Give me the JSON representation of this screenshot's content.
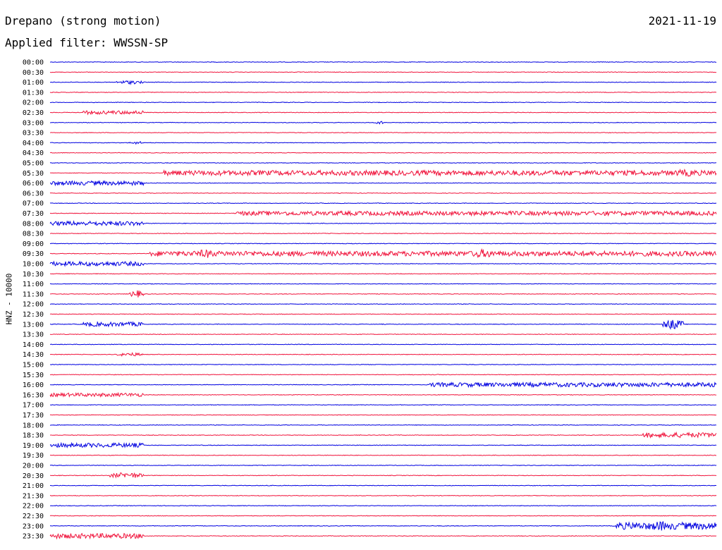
{
  "header": {
    "station_title": "Drepano (strong motion)",
    "date": "2021-11-19",
    "filter_text": "Applied filter: WWSSN-SP"
  },
  "chart_data": {
    "type": "line",
    "title": "Drepano (strong motion)",
    "ylabel": "HNZ - 10000",
    "colors": [
      "#0000e0",
      "#f0143c"
    ],
    "rows": [
      {
        "label": "00:00",
        "bursts": []
      },
      {
        "label": "00:30",
        "bursts": []
      },
      {
        "label": "01:00",
        "bursts": [
          [
            0.1,
            0.14,
            2.5
          ]
        ]
      },
      {
        "label": "01:30",
        "bursts": []
      },
      {
        "label": "02:00",
        "bursts": []
      },
      {
        "label": "02:30",
        "bursts": [
          [
            0.05,
            0.14,
            2.5
          ]
        ]
      },
      {
        "label": "03:00",
        "bursts": [
          [
            0.49,
            0.5,
            2.5
          ]
        ]
      },
      {
        "label": "03:30",
        "bursts": []
      },
      {
        "label": "04:00",
        "bursts": [
          [
            0.12,
            0.14,
            2
          ]
        ]
      },
      {
        "label": "04:30",
        "bursts": []
      },
      {
        "label": "05:00",
        "bursts": []
      },
      {
        "label": "05:30",
        "bursts": [
          [
            0.17,
            1.0,
            3.5
          ],
          [
            0.93,
            0.98,
            5
          ]
        ]
      },
      {
        "label": "06:00",
        "bursts": [
          [
            0.0,
            0.14,
            3
          ]
        ]
      },
      {
        "label": "06:30",
        "bursts": []
      },
      {
        "label": "07:00",
        "bursts": []
      },
      {
        "label": "07:30",
        "bursts": [
          [
            0.28,
            1.0,
            3
          ]
        ]
      },
      {
        "label": "08:00",
        "bursts": [
          [
            0.0,
            0.14,
            3
          ]
        ]
      },
      {
        "label": "08:30",
        "bursts": []
      },
      {
        "label": "09:00",
        "bursts": []
      },
      {
        "label": "09:30",
        "bursts": [
          [
            0.15,
            1.0,
            3.5
          ],
          [
            0.22,
            0.25,
            6
          ],
          [
            0.63,
            0.67,
            6
          ]
        ]
      },
      {
        "label": "10:00",
        "bursts": [
          [
            0.0,
            0.14,
            3
          ]
        ]
      },
      {
        "label": "10:30",
        "bursts": []
      },
      {
        "label": "11:00",
        "bursts": []
      },
      {
        "label": "11:30",
        "bursts": [
          [
            0.12,
            0.14,
            5
          ]
        ]
      },
      {
        "label": "12:00",
        "bursts": []
      },
      {
        "label": "12:30",
        "bursts": []
      },
      {
        "label": "13:00",
        "bursts": [
          [
            0.05,
            0.14,
            3
          ],
          [
            0.92,
            0.95,
            7
          ]
        ]
      },
      {
        "label": "13:30",
        "bursts": []
      },
      {
        "label": "14:00",
        "bursts": []
      },
      {
        "label": "14:30",
        "bursts": [
          [
            0.1,
            0.14,
            2.5
          ]
        ]
      },
      {
        "label": "15:00",
        "bursts": []
      },
      {
        "label": "15:30",
        "bursts": []
      },
      {
        "label": "16:00",
        "bursts": [
          [
            0.57,
            1.0,
            3
          ]
        ]
      },
      {
        "label": "16:30",
        "bursts": [
          [
            0.0,
            0.14,
            2.5
          ]
        ]
      },
      {
        "label": "17:00",
        "bursts": []
      },
      {
        "label": "17:30",
        "bursts": []
      },
      {
        "label": "18:00",
        "bursts": []
      },
      {
        "label": "18:30",
        "bursts": [
          [
            0.89,
            1.0,
            3.5
          ]
        ]
      },
      {
        "label": "19:00",
        "bursts": [
          [
            0.0,
            0.14,
            3
          ]
        ]
      },
      {
        "label": "19:30",
        "bursts": []
      },
      {
        "label": "20:00",
        "bursts": []
      },
      {
        "label": "20:30",
        "bursts": [
          [
            0.09,
            0.14,
            4
          ]
        ]
      },
      {
        "label": "21:00",
        "bursts": []
      },
      {
        "label": "21:30",
        "bursts": []
      },
      {
        "label": "22:00",
        "bursts": []
      },
      {
        "label": "22:30",
        "bursts": []
      },
      {
        "label": "23:00",
        "bursts": [
          [
            0.85,
            1.0,
            5
          ],
          [
            0.9,
            0.93,
            7
          ]
        ]
      },
      {
        "label": "23:30",
        "bursts": [
          [
            0.0,
            0.14,
            3.5
          ]
        ]
      }
    ]
  }
}
